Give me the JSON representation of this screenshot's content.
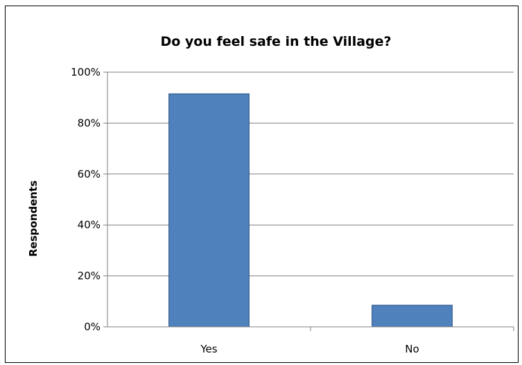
{
  "chart_data": {
    "type": "bar",
    "title": "Do you feel safe in the Village?",
    "xlabel": "",
    "ylabel": "Respondents",
    "categories": [
      "Yes",
      "No"
    ],
    "values": [
      91.5,
      8.5
    ],
    "ylim": [
      0,
      100
    ],
    "yticks": [
      0,
      20,
      40,
      60,
      80,
      100
    ],
    "ytick_labels": [
      "0%",
      "20%",
      "40%",
      "60%",
      "80%",
      "100%"
    ],
    "grid": true,
    "legend": "none",
    "colors": {
      "bar_fill": "#4F81BD",
      "bar_stroke": "#254F7E",
      "grid": "#7F7F7F",
      "axis": "#7F7F7F"
    }
  }
}
